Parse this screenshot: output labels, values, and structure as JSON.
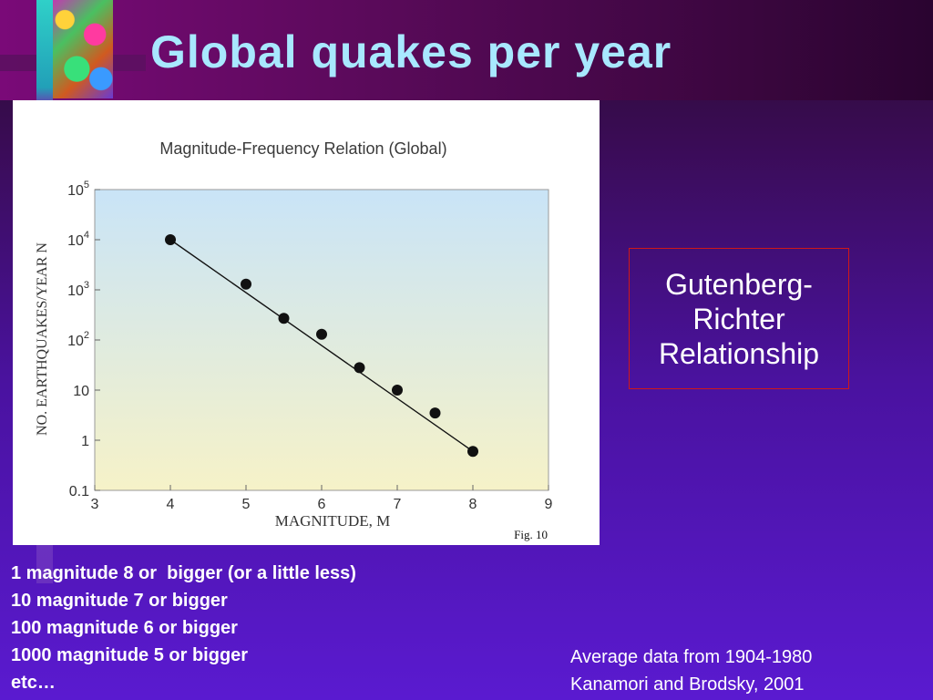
{
  "slide": {
    "title": "Global quakes per year",
    "annotation_box": [
      "Gutenberg-",
      "Richter",
      "Relationship"
    ],
    "notes": [
      "1 magnitude 8 or  bigger (or a little less)",
      "10 magnitude 7 or bigger",
      "100 magnitude 6 or bigger",
      "1000 magnitude 5 or bigger",
      "etc…"
    ],
    "credits": [
      "Average data from 1904-1980",
      "Kanamori and Brodsky, 2001"
    ]
  },
  "figure": {
    "caption": "Fig. 10"
  },
  "chart_data": {
    "type": "scatter",
    "title": "Magnitude-Frequency Relation (Global)",
    "xlabel": "MAGNITUDE, M",
    "ylabel": "NO. EARTHQUAKES/YEAR N",
    "xlim": [
      3,
      9
    ],
    "ylim": [
      0.1,
      100000
    ],
    "y_scale": "log",
    "x_ticks": [
      "3",
      "4",
      "5",
      "6",
      "7",
      "8",
      "9"
    ],
    "y_ticks": [
      {
        "value": 0.1,
        "label": "0.1"
      },
      {
        "value": 1,
        "label": "1"
      },
      {
        "value": 10,
        "label": "10"
      },
      {
        "value": 100,
        "label": "10^2"
      },
      {
        "value": 1000,
        "label": "10^3"
      },
      {
        "value": 10000,
        "label": "10^4"
      },
      {
        "value": 100000,
        "label": "10^5"
      }
    ],
    "trend_line": {
      "x": [
        4,
        8
      ],
      "y": [
        10000,
        0.6
      ]
    },
    "series": [
      {
        "x": [
          4,
          5,
          5.5,
          6,
          6.5,
          7,
          7.5,
          8
        ],
        "y": [
          10000,
          1300,
          270,
          130,
          28,
          10,
          3.5,
          0.6
        ]
      }
    ],
    "grid": false,
    "colors": {
      "plot_top": "#c9e4f7",
      "plot_bottom": "#f6f2c8",
      "marker": "#111111",
      "line": "#111111"
    }
  }
}
